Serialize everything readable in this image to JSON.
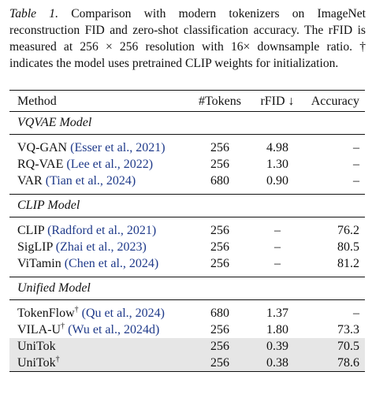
{
  "caption": {
    "label": "Table 1.",
    "text": "Comparison with modern tokenizers on ImageNet reconstruction FID and zero-shot classification accuracy. The rFID is measured at 256 × 256 resolution with 16× downsample ratio. † indicates the model uses pretrained CLIP weights for initialization."
  },
  "headers": {
    "method": "Method",
    "tokens": "#Tokens",
    "rfid": "rFID ↓",
    "accuracy": "Accuracy"
  },
  "sections": {
    "vqvae": "VQVAE Model",
    "clip": "CLIP Model",
    "unified": "Unified Model"
  },
  "rows": {
    "vqgan": {
      "name": "VQ-GAN",
      "cite": "(Esser et al., 2021)",
      "tokens": "256",
      "rfid": "4.98",
      "acc": "–"
    },
    "rqvae": {
      "name": "RQ-VAE",
      "cite": "(Lee et al., 2022)",
      "tokens": "256",
      "rfid": "1.30",
      "acc": "–"
    },
    "var": {
      "name": "VAR",
      "cite": "(Tian et al., 2024)",
      "tokens": "680",
      "rfid": "0.90",
      "acc": "–"
    },
    "clip": {
      "name": "CLIP",
      "cite": "(Radford et al., 2021)",
      "tokens": "256",
      "rfid": "–",
      "acc": "76.2"
    },
    "siglip": {
      "name": "SigLIP",
      "cite": "(Zhai et al., 2023)",
      "tokens": "256",
      "rfid": "–",
      "acc": "80.5"
    },
    "vitamin": {
      "name": "ViTamin",
      "cite": "(Chen et al., 2024)",
      "tokens": "256",
      "rfid": "–",
      "acc": "81.2"
    },
    "tokenflow": {
      "name": "TokenFlow",
      "sup": "†",
      "cite": "(Qu et al., 2024)",
      "tokens": "680",
      "rfid": "1.37",
      "acc": "–"
    },
    "vilau": {
      "name": "VILA-U",
      "sup": "†",
      "cite": "(Wu et al., 2024d)",
      "tokens": "256",
      "rfid": "1.80",
      "acc": "73.3"
    },
    "unitok": {
      "name": "UniTok",
      "tokens": "256",
      "rfid": "0.39",
      "acc": "70.5"
    },
    "unitok_dag": {
      "name": "UniTok",
      "sup": "†",
      "tokens": "256",
      "rfid": "0.38",
      "acc": "78.6"
    }
  },
  "colors": {
    "citation": "#1f3a8a",
    "highlight_row": "#e6e6e6"
  }
}
